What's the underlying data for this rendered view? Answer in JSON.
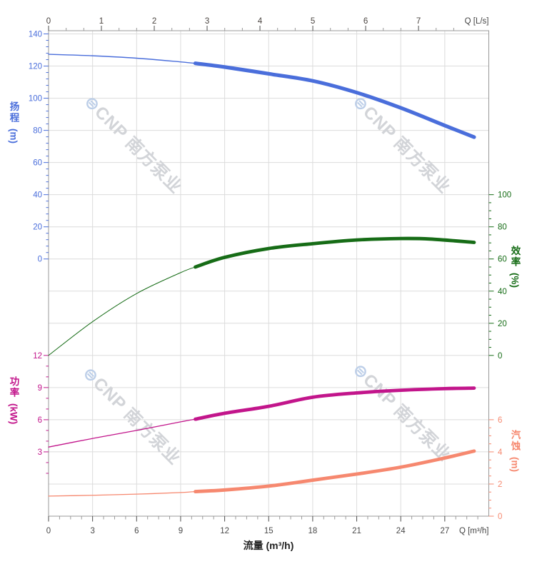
{
  "chart_data": {
    "type": "line",
    "title": "",
    "x_axis": {
      "title_bottom": "流量 (m³/h)",
      "unit_label_bottom": "Q [m³/h]",
      "unit_label_top": "Q [L/s]",
      "range_m3h": [
        0,
        30
      ],
      "range_ls": [
        0,
        8.33
      ],
      "bottom_ticks": [
        0,
        3,
        6,
        9,
        12,
        15,
        18,
        21,
        24,
        27
      ],
      "top_ticks": [
        0,
        1,
        2,
        3,
        4,
        5,
        6,
        7
      ],
      "grid": "on"
    },
    "axes": {
      "head": {
        "title": "扬程",
        "unit": "(m)",
        "color": "#4a6edb",
        "ticks": [
          140,
          120,
          100,
          80,
          60,
          40,
          20,
          0
        ],
        "minor_step": 4,
        "range": [
          0,
          140
        ]
      },
      "eff": {
        "title": "效率",
        "unit": "(%)",
        "color": "#166c16",
        "ticks": [
          100,
          80,
          60,
          40,
          20,
          0
        ],
        "minor_step": 5,
        "range": [
          0,
          100
        ]
      },
      "power": {
        "title": "功率",
        "unit": "(kW)",
        "color": "#c2158b",
        "ticks": [
          12,
          9,
          6,
          3
        ],
        "minor_step": 1,
        "range": [
          1,
          12
        ]
      },
      "npsh": {
        "title": "汽蚀",
        "unit": "(m)",
        "color": "#f6886f",
        "ticks": [
          6,
          4,
          2,
          0
        ],
        "minor_step": 0.5,
        "range": [
          0,
          6
        ]
      }
    },
    "series": [
      {
        "name": "扬程",
        "semantic": "head-curve",
        "axis": "head",
        "unit": "m",
        "color": "#4a6edb",
        "thick_from": 10,
        "points": [
          [
            0,
            127.3
          ],
          [
            3,
            126.4
          ],
          [
            6,
            124.9
          ],
          [
            9,
            122.6
          ],
          [
            10,
            121.7
          ],
          [
            12,
            119.4
          ],
          [
            15,
            115.2
          ],
          [
            18,
            110.8
          ],
          [
            21,
            103.5
          ],
          [
            24,
            94
          ],
          [
            27,
            83
          ],
          [
            29,
            75.8
          ]
        ]
      },
      {
        "name": "效率",
        "semantic": "efficiency-curve",
        "axis": "eff",
        "unit": "%",
        "color": "#166c16",
        "thick_from": 10,
        "points": [
          [
            0,
            0
          ],
          [
            3,
            21
          ],
          [
            6,
            38.5
          ],
          [
            9,
            51.5
          ],
          [
            10,
            55
          ],
          [
            12,
            61
          ],
          [
            15,
            66.5
          ],
          [
            18,
            69.5
          ],
          [
            21,
            71.8
          ],
          [
            24,
            72.7
          ],
          [
            26,
            72.4
          ],
          [
            29,
            70.3
          ]
        ]
      },
      {
        "name": "功率",
        "semantic": "power-curve",
        "axis": "power",
        "unit": "kW",
        "color": "#c2158b",
        "thick_from": 10,
        "points": [
          [
            0,
            3.45
          ],
          [
            3,
            4.25
          ],
          [
            6,
            5.0
          ],
          [
            9,
            5.8
          ],
          [
            10,
            6.05
          ],
          [
            12,
            6.6
          ],
          [
            15,
            7.25
          ],
          [
            18,
            8.1
          ],
          [
            21,
            8.5
          ],
          [
            24,
            8.75
          ],
          [
            27,
            8.9
          ],
          [
            29,
            8.95
          ]
        ]
      },
      {
        "name": "汽蚀",
        "semantic": "npsh-curve",
        "axis": "npsh",
        "unit": "m",
        "color": "#f6886f",
        "thick_from": 10,
        "points": [
          [
            0,
            1.25
          ],
          [
            3,
            1.3
          ],
          [
            6,
            1.37
          ],
          [
            9,
            1.47
          ],
          [
            10,
            1.53
          ],
          [
            12,
            1.63
          ],
          [
            15,
            1.87
          ],
          [
            18,
            2.24
          ],
          [
            21,
            2.62
          ],
          [
            24,
            3.05
          ],
          [
            27,
            3.62
          ],
          [
            29,
            4.05
          ]
        ]
      }
    ],
    "watermark": {
      "logo_glyph": "⊜",
      "text": "CNP 南方泵业",
      "count": 4
    }
  }
}
